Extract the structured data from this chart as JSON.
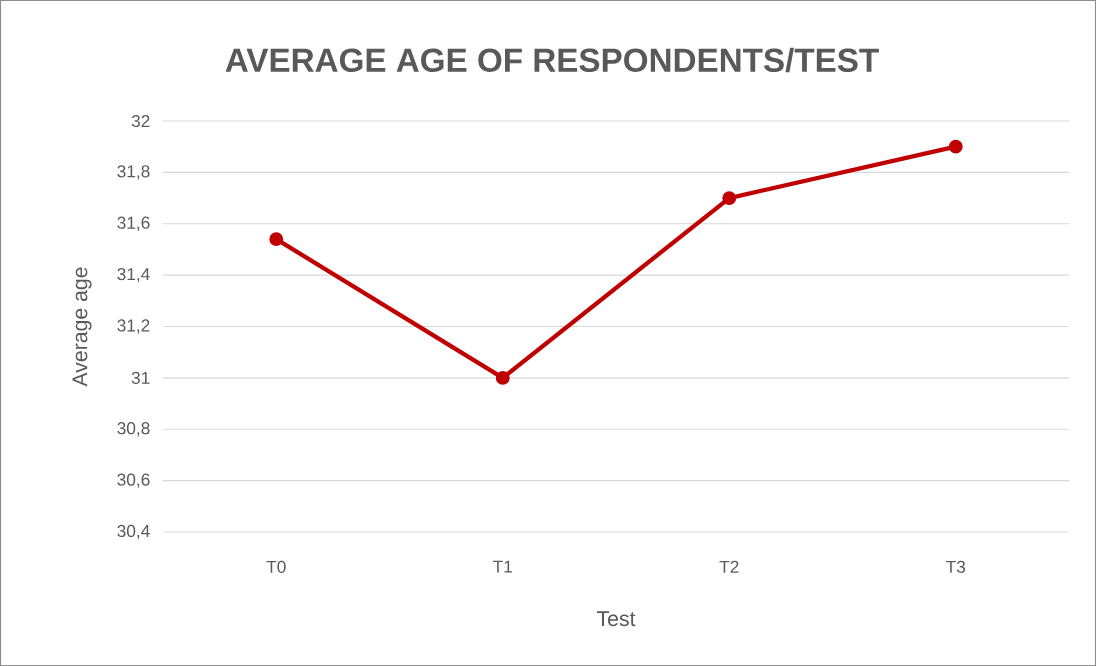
{
  "chart_data": {
    "type": "line",
    "title": "AVERAGE AGE OF RESPONDENTS/TEST",
    "xlabel": "Test",
    "ylabel": "Average age",
    "categories": [
      "T0",
      "T1",
      "T2",
      "T3"
    ],
    "series": [
      {
        "color": "#c00000",
        "values": [
          31.54,
          31.0,
          31.7,
          31.9
        ]
      }
    ],
    "ylim": [
      30.4,
      32
    ],
    "yticks": [
      {
        "value": 30.4,
        "label": "30,4"
      },
      {
        "value": 30.6,
        "label": "30,6"
      },
      {
        "value": 30.8,
        "label": "30,8"
      },
      {
        "value": 31,
        "label": "31"
      },
      {
        "value": 31.2,
        "label": "31,2"
      },
      {
        "value": 31.4,
        "label": "31,4"
      },
      {
        "value": 31.6,
        "label": "31,6"
      },
      {
        "value": 31.8,
        "label": "31,8"
      },
      {
        "value": 32,
        "label": "32"
      }
    ],
    "grid": "y",
    "marker": "circle",
    "line_style": "solid"
  }
}
